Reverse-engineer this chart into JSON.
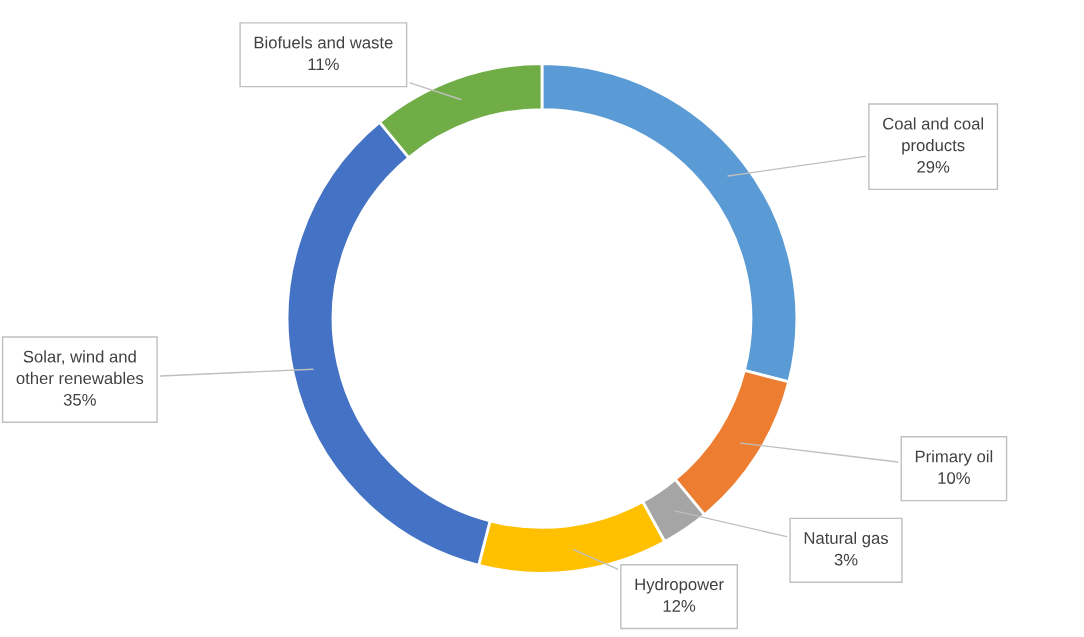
{
  "chart_data": {
    "type": "donut",
    "categories": [
      "Coal and coal products",
      "Primary oil",
      "Natural gas",
      "Hydropower",
      "Solar, wind and other renewables",
      "Biofuels and waste"
    ],
    "values": [
      29,
      10,
      3,
      12,
      35,
      11
    ],
    "value_labels": [
      "29%",
      "10%",
      "3%",
      "12%",
      "35%",
      "11%"
    ],
    "colors": [
      "#5b9bd5",
      "#ed7d31",
      "#a5a5a5",
      "#ffc000",
      "#4472c4",
      "#70ad47"
    ],
    "legend": false
  }
}
